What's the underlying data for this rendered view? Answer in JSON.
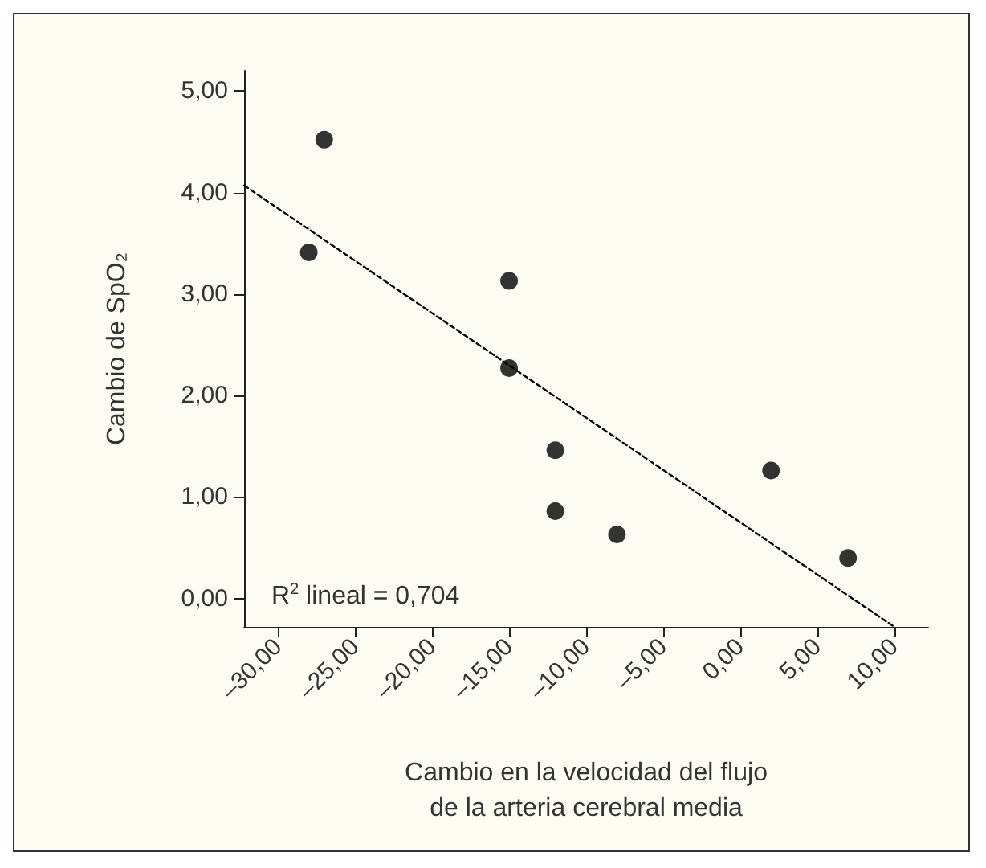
{
  "chart_data": {
    "type": "scatter",
    "xlabel": "Cambio en la velocidad del flujo\nde la arteria cerebral media",
    "ylabel": "Cambio de SpO₂",
    "annotations": [
      "R$^{2}$ lineal = 0,704"
    ],
    "xlim": [
      -32.2,
      12.2
    ],
    "ylim": [
      -0.28,
      5.2
    ],
    "xticks": [
      {
        "value": -30,
        "label": "–30,00"
      },
      {
        "value": -25,
        "label": "–25,00"
      },
      {
        "value": -20,
        "label": "–20,00"
      },
      {
        "value": -15,
        "label": "–15,00"
      },
      {
        "value": -10,
        "label": "–10,00"
      },
      {
        "value": -5,
        "label": "–5,00"
      },
      {
        "value": 0,
        "label": "0,00"
      },
      {
        "value": 5,
        "label": "5,00"
      },
      {
        "value": 10,
        "label": "10,00"
      }
    ],
    "yticks": [
      {
        "value": 0,
        "label": "0,00"
      },
      {
        "value": 1,
        "label": "1,00"
      },
      {
        "value": 2,
        "label": "2,00"
      },
      {
        "value": 3,
        "label": "3,00"
      },
      {
        "value": 4,
        "label": "4,00"
      },
      {
        "value": 5,
        "label": "5,00"
      }
    ],
    "grid": false,
    "marker": "circle",
    "series": [
      {
        "color": "#000000",
        "x": [
          -27.0,
          -28.0,
          -15.0,
          -15.0,
          -12.0,
          -12.0,
          -8.0,
          2.0,
          7.0
        ],
        "values": [
          4.52,
          3.41,
          3.13,
          2.27,
          1.46,
          0.86,
          0.63,
          1.26,
          0.4
        ]
      },
      {
        "type": "line",
        "color": "#000000",
        "line_style": "dashed",
        "marker": "none",
        "x": [
          -32.2,
          10.0
        ],
        "values": [
          4.07,
          -0.28
        ]
      }
    ]
  }
}
